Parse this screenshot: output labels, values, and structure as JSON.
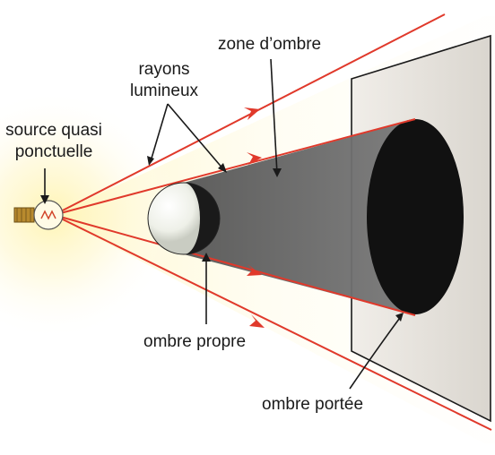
{
  "labels": {
    "zone_ombre": "zone d’ombre",
    "rayons_line1": "rayons",
    "rayons_line2": "lumineux",
    "source_line1": "source quasi",
    "source_line2": "ponctuelle",
    "ombre_propre": "ombre propre",
    "ombre_portee": "ombre portée"
  },
  "colors": {
    "ray": "#e0392b",
    "shadow_zone": "#6e6e6e",
    "cast_shadow": "#111111",
    "screen": "#e9e6e1",
    "glow": "#fff2a8"
  }
}
